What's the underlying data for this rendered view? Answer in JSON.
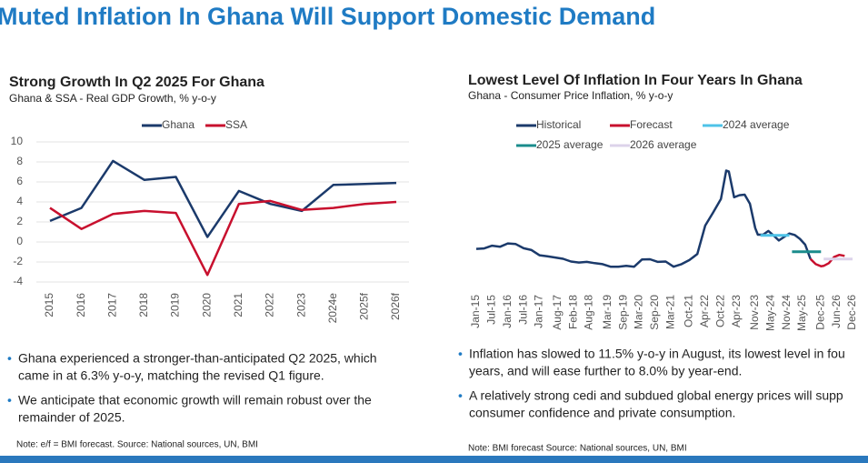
{
  "header": {
    "title": "Muted Inflation In Ghana Will Support Domestic Demand"
  },
  "chart_data": [
    {
      "type": "line",
      "title": "Strong Growth In Q2 2025 For Ghana",
      "subtitle": "Ghana & SSA - Real GDP Growth, % y-o-y",
      "categories": [
        "2015",
        "2016",
        "2017",
        "2018",
        "2019",
        "2020",
        "2021",
        "2022",
        "2023",
        "2024e",
        "2025f",
        "2026f"
      ],
      "series": [
        {
          "name": "Ghana",
          "color": "#1b3a6b",
          "values": [
            2.1,
            3.4,
            8.1,
            6.2,
            6.5,
            0.5,
            5.1,
            3.8,
            3.1,
            5.7,
            5.8,
            5.9
          ]
        },
        {
          "name": "SSA",
          "color": "#c8102e",
          "values": [
            3.4,
            1.3,
            2.8,
            3.1,
            2.9,
            -3.3,
            3.8,
            4.1,
            3.2,
            3.4,
            3.8,
            4.0
          ]
        }
      ],
      "ylim": [
        -4,
        10
      ],
      "yticks": [
        -4,
        -2,
        0,
        2,
        4,
        6,
        8,
        10
      ],
      "grid": true,
      "legend": "top"
    },
    {
      "type": "line",
      "title": "Lowest Level Of Inflation In Four Years In Ghana",
      "subtitle": "Ghana - Consumer Price Inflation, % y-o-y",
      "xlim": [
        0,
        143
      ],
      "xticks": [
        {
          "value": 0,
          "label": "Jan-15"
        },
        {
          "value": 6,
          "label": "Jul-15"
        },
        {
          "value": 12,
          "label": "Jan-16"
        },
        {
          "value": 18,
          "label": "Jul-16"
        },
        {
          "value": 24,
          "label": "Jan-17"
        },
        {
          "value": 31,
          "label": "Aug-17"
        },
        {
          "value": 37,
          "label": "Feb-18"
        },
        {
          "value": 43,
          "label": "Aug-18"
        },
        {
          "value": 50,
          "label": "Mar-19"
        },
        {
          "value": 56,
          "label": "Sep-19"
        },
        {
          "value": 62,
          "label": "Mar-20"
        },
        {
          "value": 68,
          "label": "Sep-20"
        },
        {
          "value": 74,
          "label": "Mar-21"
        },
        {
          "value": 81,
          "label": "Oct-21"
        },
        {
          "value": 87,
          "label": "Apr-22"
        },
        {
          "value": 93,
          "label": "Oct-22"
        },
        {
          "value": 99,
          "label": "Apr-23"
        },
        {
          "value": 106,
          "label": "Nov-23"
        },
        {
          "value": 112,
          "label": "May-24"
        },
        {
          "value": 118,
          "label": "Nov-24"
        },
        {
          "value": 124,
          "label": "May-25"
        },
        {
          "value": 131,
          "label": "Dec-25"
        },
        {
          "value": 137,
          "label": "Jun-26"
        },
        {
          "value": 143,
          "label": "Dec-26"
        }
      ],
      "ylim": [
        0,
        60
      ],
      "grid": false,
      "series": [
        {
          "name": "Historical",
          "color": "#1b3a6b",
          "x": [
            0,
            3,
            6,
            9,
            12,
            15,
            18,
            21,
            24,
            27,
            30,
            33,
            36,
            39,
            42,
            45,
            48,
            51,
            54,
            57,
            60,
            63,
            66,
            69,
            72,
            75,
            78,
            81,
            84,
            87,
            90,
            93,
            95,
            96,
            98,
            100,
            102,
            104,
            106,
            107,
            109,
            111,
            113,
            115,
            117,
            119,
            121,
            123,
            125,
            127
          ],
          "values": [
            16.4,
            16.6,
            17.9,
            17.4,
            19.0,
            18.7,
            16.7,
            15.8,
            13.3,
            12.8,
            12.2,
            11.6,
            10.3,
            9.8,
            10.1,
            9.5,
            9.0,
            7.8,
            7.8,
            8.2,
            7.8,
            11.3,
            11.4,
            10.1,
            10.3,
            7.8,
            9.0,
            11.0,
            13.9,
            27.6,
            33.9,
            40.4,
            54.1,
            53.6,
            41.2,
            42.2,
            42.5,
            38.1,
            26.4,
            23.2,
            23.2,
            25.0,
            22.8,
            20.4,
            22.1,
            23.8,
            23.1,
            21.2,
            18.4,
            11.5
          ]
        },
        {
          "name": "Forecast",
          "color": "#c8102e",
          "x": [
            127,
            129,
            131,
            132,
            134,
            136,
            138,
            140
          ],
          "values": [
            11.5,
            9.0,
            8.0,
            8.2,
            9.5,
            12.5,
            13.5,
            13.0
          ]
        },
        {
          "name": "2024 average",
          "color": "#4ec3e8",
          "x": [
            108,
            119
          ],
          "values": [
            22.9,
            22.9
          ]
        },
        {
          "name": "2025 average",
          "color": "#1a8c8c",
          "x": [
            120,
            131
          ],
          "values": [
            15.0,
            15.0
          ]
        },
        {
          "name": "2026 average",
          "color": "#dcd3ea",
          "x": [
            132,
            143
          ],
          "values": [
            11.5,
            11.5
          ]
        }
      ]
    }
  ],
  "left_bullets": [
    [
      "Ghana experienced a stronger-than-anticipated Q2 2025, which",
      "came in at 6.3% y-o-y, matching the revised Q1 figure."
    ],
    [
      "We anticipate that economic growth will remain robust over the",
      "remainder of 2025."
    ]
  ],
  "right_bullets": [
    [
      "Inflation has slowed to 11.5% y-o-y in August, its lowest level in fou",
      "years, and will ease further to 8.0% by year-end."
    ],
    [
      "A relatively strong cedi and subdued global energy prices will supp",
      "consumer confidence and private consumption."
    ]
  ],
  "left_note": "Note: e/f = BMI forecast. Source: National sources, UN, BMI",
  "right_note": "Note: BMI forecast Source: National sources, UN, BMI"
}
